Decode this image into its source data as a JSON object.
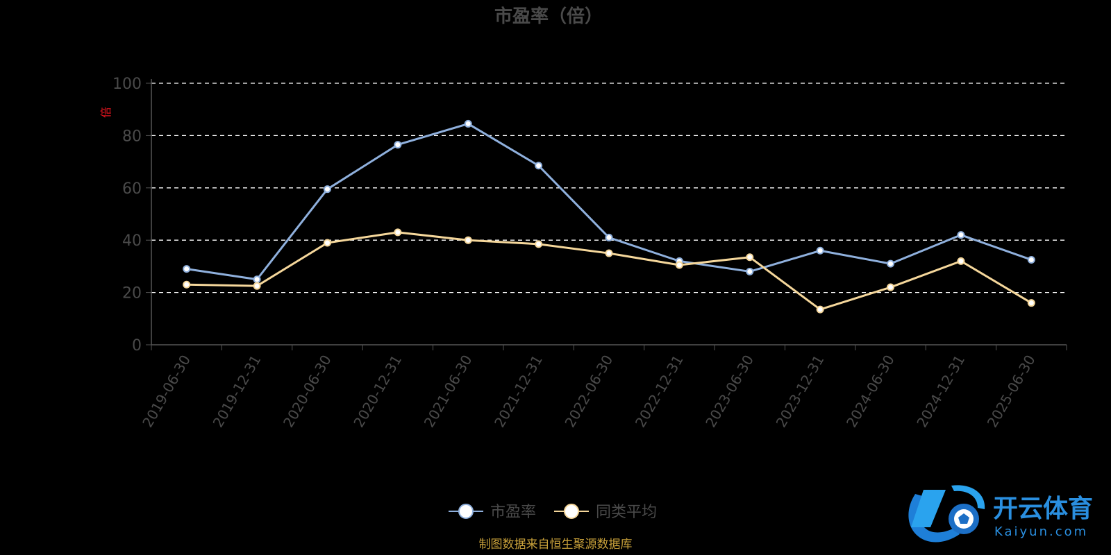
{
  "chart_data": {
    "type": "line",
    "title": "市盈率（倍）",
    "ylabel": "倍",
    "ylim": [
      0,
      100
    ],
    "yticks": [
      0,
      20,
      40,
      60,
      80,
      100
    ],
    "grid": true,
    "legend_position": "bottom-center",
    "categories": [
      "2019-06-30",
      "2019-12-31",
      "2020-06-30",
      "2020-12-31",
      "2021-06-30",
      "2021-12-31",
      "2022-06-30",
      "2022-12-31",
      "2023-06-30",
      "2023-12-31",
      "2024-06-30",
      "2024-12-31",
      "2025-06-30"
    ],
    "series": [
      {
        "name": "市盈率",
        "color": "#8fb0dd",
        "values": [
          29,
          25,
          59.5,
          76.5,
          84.5,
          68.5,
          41,
          32,
          28,
          36,
          31,
          42,
          32.5
        ]
      },
      {
        "name": "同类平均",
        "color": "#f5d79b",
        "values": [
          23,
          22.5,
          39,
          43,
          40,
          38.5,
          35,
          30.5,
          33.5,
          13.5,
          22,
          32,
          16
        ]
      }
    ]
  },
  "footer": {
    "source": "制图数据来自恒生聚源数据库"
  },
  "watermark": {
    "text_cn": "开云体育",
    "text_en": "Kaiyun.com"
  }
}
